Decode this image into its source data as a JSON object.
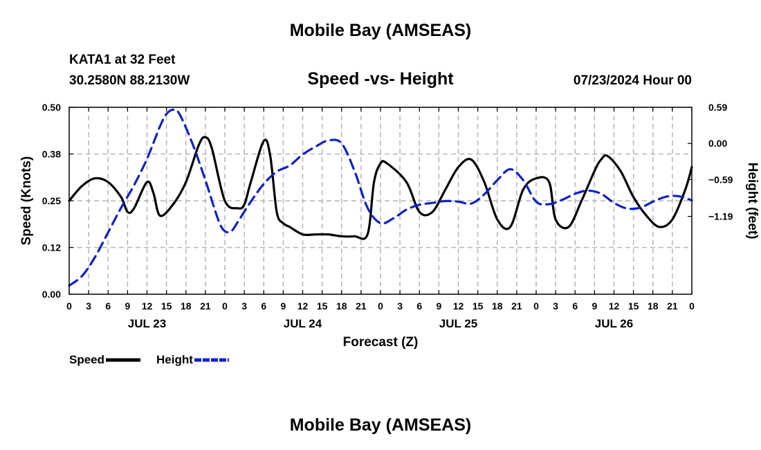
{
  "page": {
    "title": "Mobile Bay (AMSEAS)",
    "station": "KATA1 at 32 Feet",
    "coords": "30.2580N  88.2130W",
    "datetime": "07/23/2024 Hour 00",
    "footer_title": "Mobile Bay (AMSEAS)"
  },
  "colors": {
    "speed": "#000000",
    "height": "#1020c8",
    "grid": "#b4b4b4"
  },
  "chart_data": {
    "type": "line",
    "title": "Speed -vs- Height",
    "xlabel": "Forecast (Z)",
    "ylabel": "Speed (Knots)",
    "y2label": "Height (feet)",
    "xlim": [
      0,
      96
    ],
    "ylim": [
      0,
      0.5
    ],
    "y2lim": [
      -2.46,
      0.59
    ],
    "yticks": [
      "0.00",
      "0.12",
      "0.25",
      "0.38",
      "0.50"
    ],
    "y2ticks": [
      {
        "value": 0.59,
        "label": "0.59"
      },
      {
        "value": 0.0,
        "label": "0.00"
      },
      {
        "value": -0.59,
        "label": "−0.59"
      },
      {
        "value": -1.19,
        "label": "−1.19"
      }
    ],
    "xticks": [
      "0",
      "3",
      "6",
      "9",
      "12",
      "15",
      "18",
      "21",
      "0",
      "3",
      "6",
      "9",
      "12",
      "15",
      "18",
      "21",
      "0",
      "3",
      "6",
      "9",
      "12",
      "15",
      "18",
      "21",
      "0",
      "3",
      "6",
      "9",
      "12",
      "15",
      "18",
      "21",
      "0"
    ],
    "day_labels": [
      {
        "hour": 12,
        "label": "JUL 23"
      },
      {
        "hour": 36,
        "label": "JUL 24"
      },
      {
        "hour": 60,
        "label": "JUL 25"
      },
      {
        "hour": 84,
        "label": "JUL 26"
      }
    ],
    "legend": [
      {
        "name": "Speed",
        "style": "solid"
      },
      {
        "name": "Height",
        "style": "dashed"
      }
    ],
    "legend_position": "bottom-left",
    "series": [
      {
        "name": "Speed",
        "axis": "left",
        "x": [
          0,
          2,
          4,
          6,
          8,
          9,
          10,
          12,
          13,
          14,
          16,
          18,
          20,
          21,
          22,
          24,
          26,
          27,
          28,
          30,
          31,
          32,
          33,
          34,
          36,
          38,
          40,
          42,
          44,
          46,
          47,
          48,
          49,
          52,
          54,
          56,
          58,
          60,
          62,
          64,
          66,
          68,
          70,
          72,
          74,
          75,
          77,
          79,
          81,
          82,
          83,
          85,
          87,
          89,
          91,
          93,
          95,
          96
        ],
        "values": [
          0.25,
          0.29,
          0.31,
          0.3,
          0.26,
          0.22,
          0.23,
          0.3,
          0.27,
          0.21,
          0.24,
          0.3,
          0.4,
          0.42,
          0.39,
          0.25,
          0.23,
          0.24,
          0.3,
          0.41,
          0.37,
          0.22,
          0.19,
          0.18,
          0.16,
          0.16,
          0.16,
          0.155,
          0.155,
          0.16,
          0.3,
          0.35,
          0.35,
          0.3,
          0.22,
          0.22,
          0.28,
          0.34,
          0.36,
          0.3,
          0.2,
          0.18,
          0.28,
          0.31,
          0.3,
          0.2,
          0.18,
          0.25,
          0.33,
          0.36,
          0.37,
          0.33,
          0.26,
          0.21,
          0.18,
          0.2,
          0.28,
          0.34
        ]
      },
      {
        "name": "Height",
        "axis": "right",
        "x": [
          0,
          2,
          4,
          6,
          8,
          10,
          12,
          14,
          15,
          16,
          17,
          19,
          21,
          23,
          24,
          25,
          26,
          28,
          30,
          32,
          34,
          36,
          38,
          40,
          42,
          44,
          46,
          48,
          50,
          52,
          54,
          56,
          58,
          60,
          62,
          64,
          66,
          68,
          70,
          72,
          74,
          76,
          78,
          80,
          82,
          84,
          86,
          88,
          90,
          92,
          94,
          96
        ],
        "values": [
          -2.32,
          -2.16,
          -1.85,
          -1.45,
          -1.05,
          -0.68,
          -0.25,
          0.28,
          0.48,
          0.55,
          0.48,
          0.0,
          -0.6,
          -1.25,
          -1.43,
          -1.43,
          -1.28,
          -0.95,
          -0.66,
          -0.46,
          -0.36,
          -0.18,
          -0.05,
          0.05,
          0.0,
          -0.45,
          -1.05,
          -1.3,
          -1.22,
          -1.08,
          -1.0,
          -0.97,
          -0.94,
          -0.95,
          -0.98,
          -0.83,
          -0.6,
          -0.42,
          -0.6,
          -0.95,
          -0.99,
          -0.92,
          -0.82,
          -0.77,
          -0.82,
          -0.97,
          -1.06,
          -1.05,
          -0.95,
          -0.87,
          -0.86,
          -0.93
        ]
      }
    ]
  }
}
